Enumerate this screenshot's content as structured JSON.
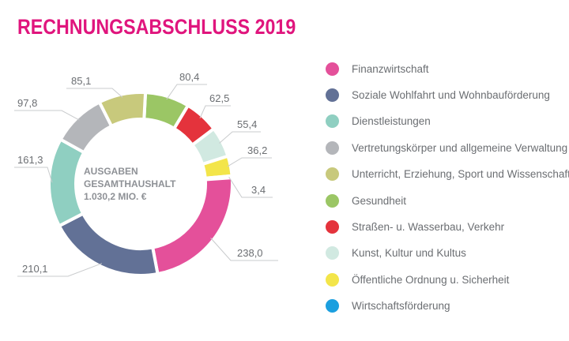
{
  "title": "RECHNUNGSABSCHLUSS 2019",
  "chart_data": {
    "type": "pie",
    "variant": "donut",
    "title": "RECHNUNGSABSCHLUSS 2019",
    "center_label": [
      "AUSGABEN",
      "GESAMTHAUSHALT",
      "1.030,2 MIO. €"
    ],
    "legend_position": "right",
    "categories": [
      "Finanzwirtschaft",
      "Soziale Wohlfahrt und Wohnbauförderung",
      "Dienstleistungen",
      "Vertretungskörper und allgemeine Verwaltung",
      "Unterricht, Erziehung, Sport und Wissenschaft",
      "Gesundheit",
      "Straßen- u. Wasserbau, Verkehr",
      "Kunst, Kultur und Kultus",
      "Öffentliche Ordnung u. Sicherheit",
      "Wirtschaftsförderung"
    ],
    "values": [
      238.0,
      210.1,
      161.3,
      97.8,
      85.1,
      80.4,
      62.5,
      55.4,
      36.2,
      3.4
    ],
    "value_labels": [
      "238,0",
      "210,1",
      "161,3",
      "97,8",
      "85,1",
      "80,4",
      "62,5",
      "55,4",
      "36,2",
      "3,4"
    ],
    "colors": [
      "#e4509a",
      "#627196",
      "#8fcfc1",
      "#b4b6ba",
      "#c8c97c",
      "#9bc665",
      "#e4333c",
      "#d1e9e1",
      "#f3e54a",
      "#1b9fdf"
    ]
  }
}
